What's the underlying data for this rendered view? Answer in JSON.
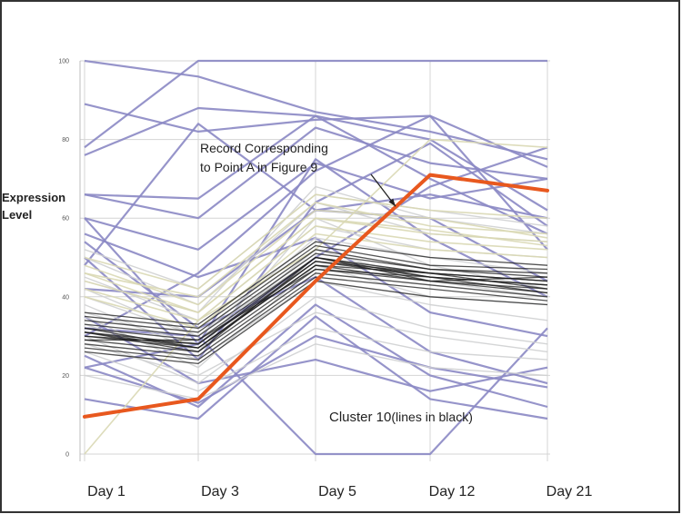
{
  "chart_data": {
    "type": "line",
    "categories": [
      "Day 1",
      "Day 3",
      "Day 5",
      "Day 12",
      "Day 21"
    ],
    "ylabel": "Expression Level",
    "ylim": [
      0,
      100
    ],
    "yticks": [
      0,
      20,
      40,
      60,
      80,
      100
    ],
    "grid": true,
    "highlight_series": {
      "values": [
        9.5,
        14,
        44,
        71,
        67
      ],
      "color": "#e8581e"
    },
    "annotations": [
      {
        "text": "Record Corresponding\nto Point A in Figure 9",
        "at": {
          "category": "Day 12",
          "value": 63
        }
      },
      {
        "text": "Cluster 10",
        "suffix": "(lines in black)"
      }
    ],
    "background_series": {
      "purple_color": "#8b88c4",
      "light_color": "#cfd0d2",
      "tan_color": "#d9d8b4",
      "black_color": "#1a1a1a",
      "purple": [
        [
          100,
          96,
          87,
          82,
          75
        ],
        [
          89,
          82,
          85,
          86,
          73
        ],
        [
          78,
          100,
          100,
          100,
          100
        ],
        [
          66,
          60,
          83,
          74,
          70
        ],
        [
          76,
          88,
          86,
          80,
          62
        ],
        [
          14,
          9,
          35,
          14,
          9
        ],
        [
          32,
          30,
          0,
          0,
          32
        ],
        [
          60,
          52,
          74,
          65,
          70
        ],
        [
          50,
          24,
          64,
          79,
          58
        ],
        [
          22,
          13,
          30,
          22,
          17
        ],
        [
          42,
          40,
          62,
          60,
          44
        ],
        [
          25,
          12,
          38,
          20,
          12
        ],
        [
          66,
          65,
          86,
          70,
          56
        ],
        [
          56,
          45,
          55,
          36,
          30
        ],
        [
          60,
          28,
          75,
          55,
          40
        ],
        [
          22,
          28,
          50,
          68,
          78
        ],
        [
          35,
          18,
          24,
          16,
          22
        ],
        [
          30,
          46,
          72,
          86,
          52
        ],
        [
          48,
          84,
          62,
          66,
          60
        ],
        [
          54,
          32,
          45,
          26,
          18
        ]
      ],
      "light": [
        [
          40,
          30,
          55,
          50,
          46
        ],
        [
          35,
          22,
          48,
          40,
          38
        ],
        [
          30,
          18,
          40,
          32,
          28
        ],
        [
          45,
          34,
          58,
          52,
          50
        ],
        [
          28,
          20,
          36,
          30,
          26
        ],
        [
          50,
          38,
          64,
          56,
          54
        ],
        [
          38,
          26,
          60,
          48,
          42
        ],
        [
          33,
          24,
          44,
          38,
          34
        ],
        [
          44,
          36,
          68,
          60,
          56
        ],
        [
          26,
          16,
          32,
          26,
          24
        ],
        [
          36,
          28,
          52,
          44,
          40
        ],
        [
          52,
          42,
          66,
          62,
          58
        ],
        [
          20,
          14,
          28,
          22,
          20
        ],
        [
          42,
          30,
          50,
          46,
          44
        ]
      ],
      "tan": [
        [
          44,
          36,
          60,
          56,
          54
        ],
        [
          46,
          40,
          64,
          58,
          56
        ],
        [
          42,
          34,
          58,
          54,
          52
        ],
        [
          48,
          38,
          62,
          60,
          55
        ],
        [
          40,
          32,
          56,
          52,
          50
        ],
        [
          50,
          42,
          66,
          62,
          60
        ],
        [
          0,
          34,
          52,
          80,
          78
        ],
        [
          46,
          36,
          60,
          57,
          53
        ]
      ],
      "black": [
        [
          31,
          28,
          49,
          45,
          43
        ],
        [
          30,
          27,
          48,
          44,
          42
        ],
        [
          32,
          29,
          50,
          46,
          44
        ],
        [
          29,
          26,
          47,
          44,
          41
        ],
        [
          33,
          30,
          51,
          47,
          45
        ],
        [
          31,
          27,
          49,
          46,
          44
        ],
        [
          28,
          25,
          46,
          43,
          40
        ],
        [
          34,
          31,
          52,
          47,
          46
        ],
        [
          30,
          28,
          50,
          45,
          43
        ],
        [
          32,
          27,
          48,
          46,
          42
        ],
        [
          27,
          24,
          45,
          42,
          39
        ],
        [
          35,
          32,
          53,
          48,
          47
        ],
        [
          26,
          23,
          44,
          40,
          38
        ],
        [
          36,
          33,
          54,
          50,
          48
        ],
        [
          29,
          29,
          47,
          45,
          41
        ],
        [
          31,
          26,
          50,
          44,
          45
        ]
      ]
    }
  }
}
